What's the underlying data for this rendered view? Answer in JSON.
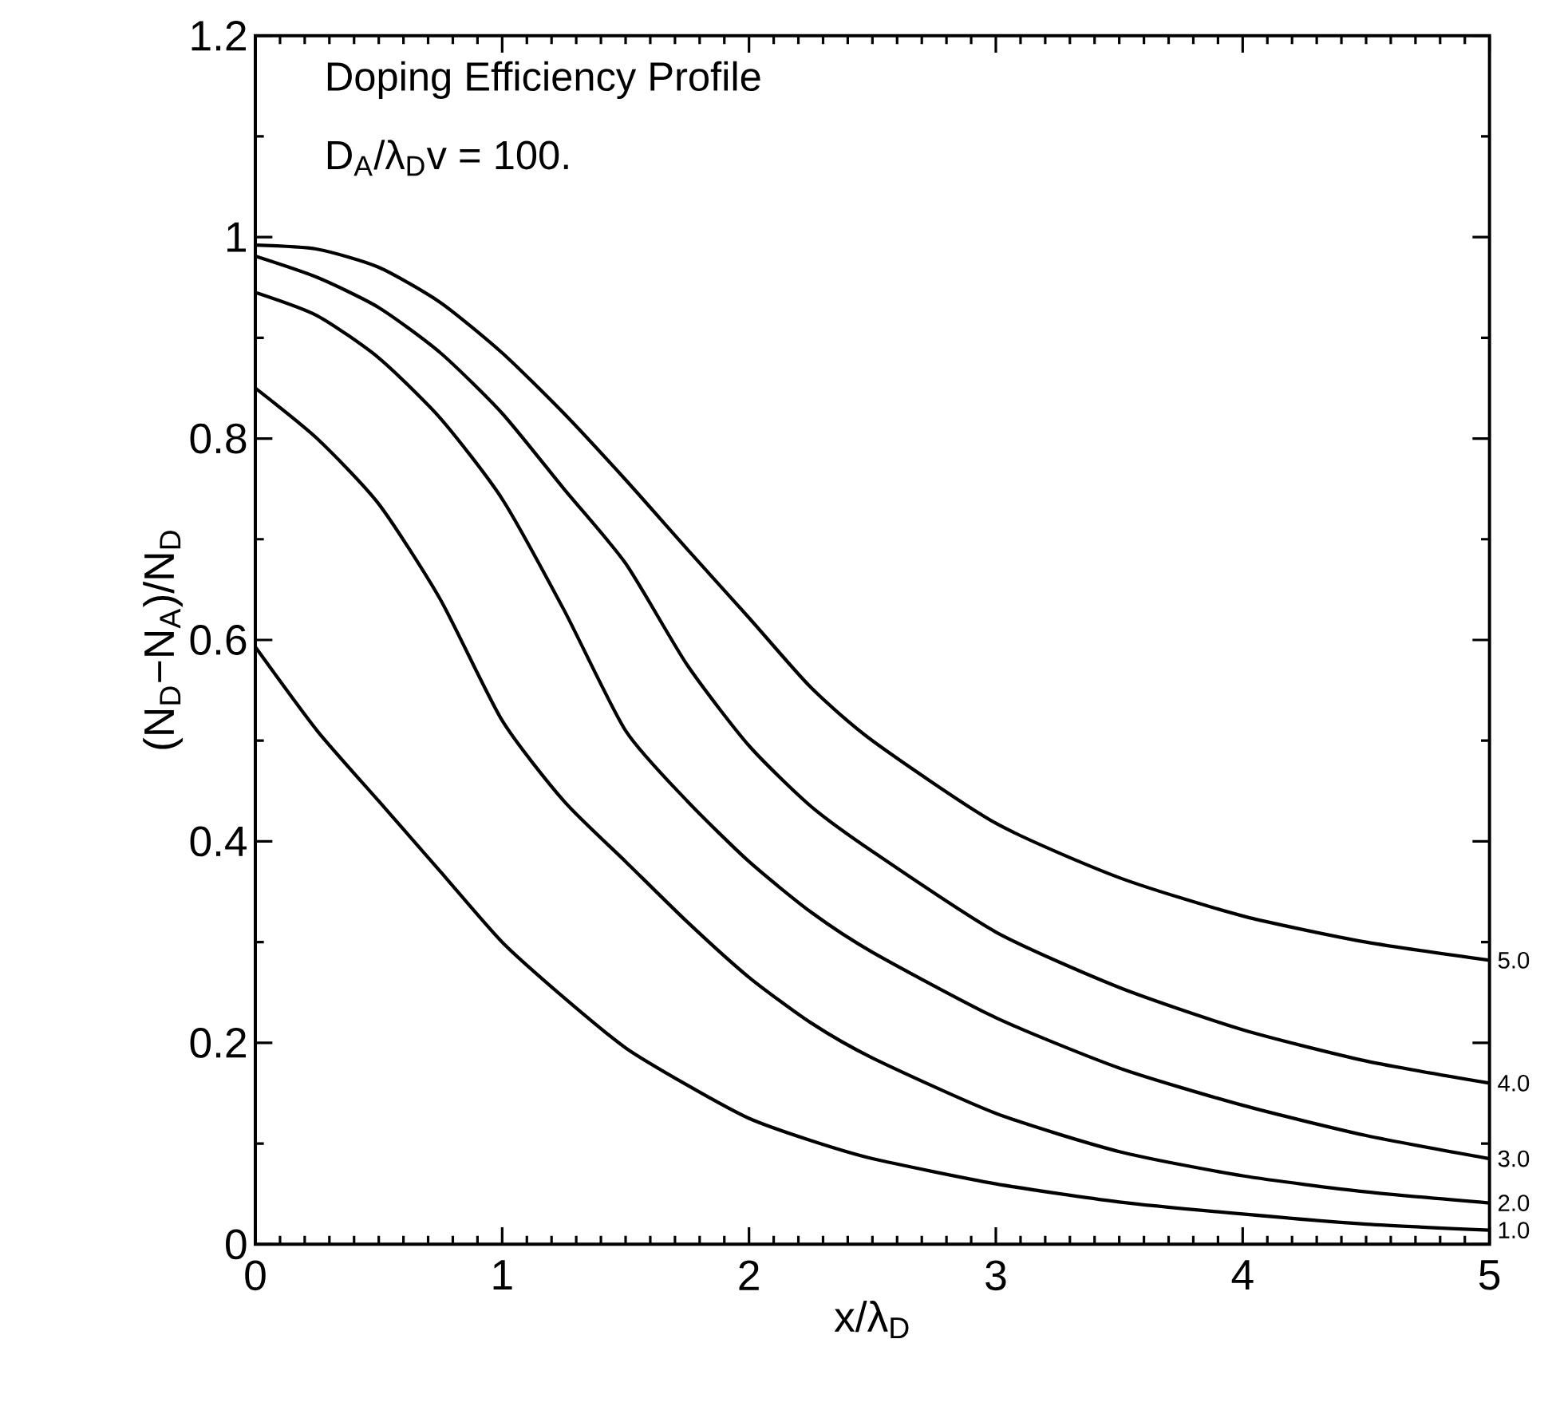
{
  "chart_data": {
    "type": "line",
    "title": "Doping Efficiency Profile",
    "annotations": [
      "D$_{A}$/λ$_{D}$v = 100."
    ],
    "xlabel": "x/λ$_{D}$",
    "ylabel": "(N$_{D}$−N$_{A}$)/N$_{D}$",
    "xlim": [
      0,
      5
    ],
    "ylim": [
      0,
      1.2
    ],
    "xticks": [
      0,
      1,
      2,
      3,
      4,
      5
    ],
    "yticks": [
      0,
      0.2,
      0.4,
      0.6,
      0.8,
      1,
      1.2
    ],
    "marker": "none",
    "legend": "right",
    "line_style": "solid",
    "x": [
      0,
      0.25,
      0.5,
      0.75,
      1,
      1.25,
      1.5,
      1.75,
      2,
      2.25,
      2.5,
      3,
      3.5,
      4,
      4.5,
      5
    ],
    "series": [
      {
        "name": "1.0",
        "color": "#000000",
        "values": [
          0.593,
          0.51,
          0.44,
          0.37,
          0.3,
          0.245,
          0.195,
          0.158,
          0.125,
          0.103,
          0.085,
          0.06,
          0.042,
          0.03,
          0.02,
          0.014
        ]
      },
      {
        "name": "2.0",
        "color": "#000000",
        "values": [
          0.85,
          0.8,
          0.735,
          0.64,
          0.52,
          0.44,
          0.38,
          0.32,
          0.265,
          0.22,
          0.185,
          0.13,
          0.092,
          0.068,
          0.052,
          0.041
        ]
      },
      {
        "name": "3.0",
        "color": "#000000",
        "values": [
          0.945,
          0.922,
          0.88,
          0.82,
          0.74,
          0.63,
          0.51,
          0.44,
          0.38,
          0.33,
          0.29,
          0.225,
          0.175,
          0.138,
          0.108,
          0.085
        ]
      },
      {
        "name": "4.0",
        "color": "#000000",
        "values": [
          0.981,
          0.96,
          0.93,
          0.885,
          0.825,
          0.75,
          0.676,
          0.575,
          0.495,
          0.435,
          0.39,
          0.31,
          0.255,
          0.213,
          0.182,
          0.16
        ]
      },
      {
        "name": "5.0",
        "color": "#000000",
        "values": [
          0.992,
          0.988,
          0.97,
          0.935,
          0.885,
          0.825,
          0.759,
          0.69,
          0.622,
          0.553,
          0.5,
          0.418,
          0.364,
          0.326,
          0.3,
          0.282
        ]
      }
    ]
  }
}
